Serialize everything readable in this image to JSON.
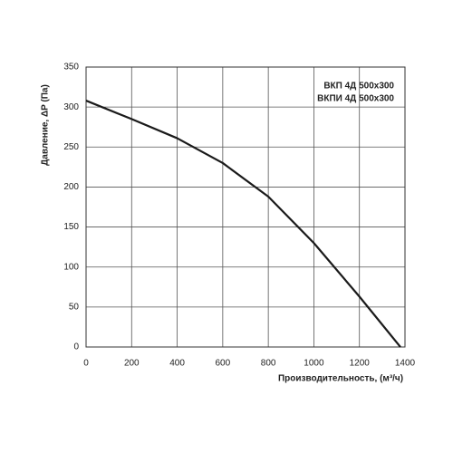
{
  "chart_data": {
    "type": "line",
    "annotations": [
      "ВКП 4Д 500x300",
      "ВКПИ 4Д 500x300"
    ],
    "xlabel": "Производительность, (м³/ч)",
    "ylabel": "Давление, ΔP (Па)",
    "x": [
      0,
      200,
      400,
      600,
      800,
      1000,
      1200,
      1380
    ],
    "series": [
      {
        "color": "#1a1a1a",
        "values": [
          308,
          285,
          261,
          230,
          188,
          130,
          63,
          0
        ]
      }
    ],
    "xlim": [
      0,
      1400
    ],
    "xticks": [
      0,
      200,
      400,
      600,
      800,
      1000,
      1200,
      1400
    ],
    "ylim": [
      0,
      350
    ],
    "yticks": [
      0,
      50,
      100,
      150,
      200,
      250,
      300,
      350
    ],
    "grid": true
  }
}
